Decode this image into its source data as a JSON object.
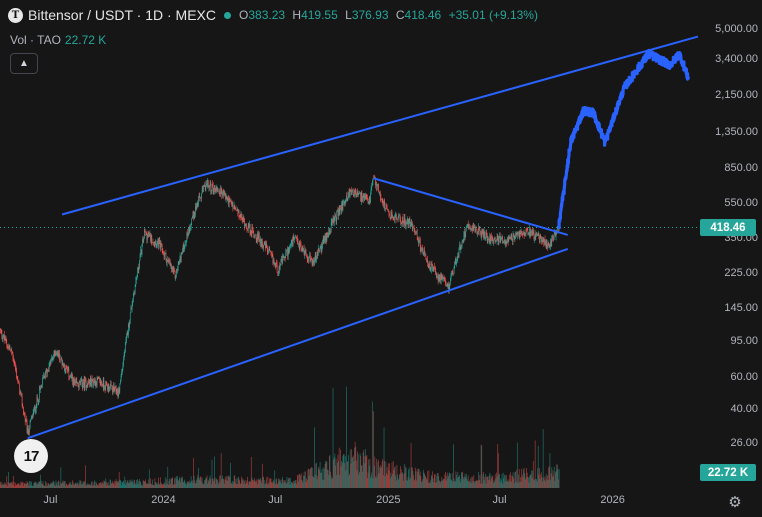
{
  "header": {
    "logo_letter": "T",
    "symbol": "Bittensor / USDT · 1D · MEXC",
    "open_label": "O",
    "open": "383.23",
    "high_label": "H",
    "high": "419.55",
    "low_label": "L",
    "low": "376.93",
    "close_label": "C",
    "close": "418.46",
    "change": "+35.01 (+9.13%)"
  },
  "volume": {
    "label": "Vol · TAO",
    "value": "22.72 K"
  },
  "collapse_icon": "chevron-up-icon",
  "price_axis": {
    "labels": [
      "5,000.00",
      "3,400.00",
      "2,150.00",
      "1,350.00",
      "850.00",
      "550.00",
      "350.00",
      "225.00",
      "145.00",
      "95.00",
      "60.00",
      "40.00",
      "26.00"
    ],
    "current_price": "418.46",
    "current_volume": "22.72 K"
  },
  "time_axis": {
    "labels": [
      "Jul",
      "2024",
      "Jul",
      "2025",
      "Jul",
      "2026"
    ]
  },
  "colors": {
    "up": "#26a69a",
    "down": "#ef5350",
    "lines": "#2962ff",
    "projection": "#2962ff",
    "background": "#161616"
  },
  "chart_data": {
    "type": "candlestick",
    "symbol": "Bittensor / USDT",
    "interval": "1D",
    "exchange": "MEXC",
    "scale": "log",
    "ylim": [
      20,
      6000
    ],
    "x_range": [
      "2023-04-10",
      "2026-05-20"
    ],
    "price_path": [
      [
        "2023-04-10",
        110
      ],
      [
        "2023-05-01",
        80
      ],
      [
        "2023-05-25",
        30
      ],
      [
        "2023-06-20",
        60
      ],
      [
        "2023-07-10",
        85
      ],
      [
        "2023-08-10",
        55
      ],
      [
        "2023-09-15",
        58
      ],
      [
        "2023-10-20",
        50
      ],
      [
        "2023-11-10",
        150
      ],
      [
        "2023-12-01",
        380
      ],
      [
        "2023-12-25",
        330
      ],
      [
        "2024-01-20",
        220
      ],
      [
        "2024-02-20",
        500
      ],
      [
        "2024-03-10",
        700
      ],
      [
        "2024-04-05",
        640
      ],
      [
        "2024-05-15",
        420
      ],
      [
        "2024-06-15",
        320
      ],
      [
        "2024-07-05",
        240
      ],
      [
        "2024-08-01",
        350
      ],
      [
        "2024-09-01",
        260
      ],
      [
        "2024-10-05",
        450
      ],
      [
        "2024-11-01",
        650
      ],
      [
        "2024-12-01",
        560
      ],
      [
        "2024-12-08",
        760
      ],
      [
        "2025-01-01",
        480
      ],
      [
        "2025-02-10",
        420
      ],
      [
        "2025-03-05",
        260
      ],
      [
        "2025-04-08",
        190
      ],
      [
        "2025-05-10",
        430
      ],
      [
        "2025-06-10",
        360
      ],
      [
        "2025-07-15",
        340
      ],
      [
        "2025-08-15",
        400
      ],
      [
        "2025-09-20",
        320
      ],
      [
        "2025-10-06",
        418.46
      ]
    ],
    "volume_profile": [
      [
        "2023-04-10",
        0.3
      ],
      [
        "2023-11-01",
        0.4
      ],
      [
        "2024-03-01",
        0.6
      ],
      [
        "2024-08-01",
        0.5
      ],
      [
        "2024-11-01",
        2.2
      ],
      [
        "2024-12-10",
        1.5
      ],
      [
        "2025-03-01",
        0.8
      ],
      [
        "2025-07-01",
        0.7
      ],
      [
        "2025-10-06",
        1.2
      ]
    ],
    "projection_path": [
      [
        "2025-10-06",
        420
      ],
      [
        "2025-10-25",
        1200
      ],
      [
        "2025-11-15",
        1800
      ],
      [
        "2025-12-01",
        1750
      ],
      [
        "2025-12-20",
        1200
      ],
      [
        "2026-01-20",
        2400
      ],
      [
        "2026-03-01",
        3700
      ],
      [
        "2026-04-05",
        3200
      ],
      [
        "2026-04-20",
        3700
      ],
      [
        "2026-05-05",
        2700
      ]
    ],
    "trendlines": [
      {
        "role": "channel-upper",
        "points": [
          [
            "2023-07-20",
            480
          ],
          [
            "2026-05-20",
            4600
          ]
        ]
      },
      {
        "role": "channel-lower",
        "points": [
          [
            "2023-05-25",
            28
          ],
          [
            "2025-10-20",
            310
          ]
        ]
      },
      {
        "role": "wedge-upper",
        "points": [
          [
            "2024-12-08",
            760
          ],
          [
            "2025-10-20",
            370
          ]
        ]
      }
    ]
  }
}
